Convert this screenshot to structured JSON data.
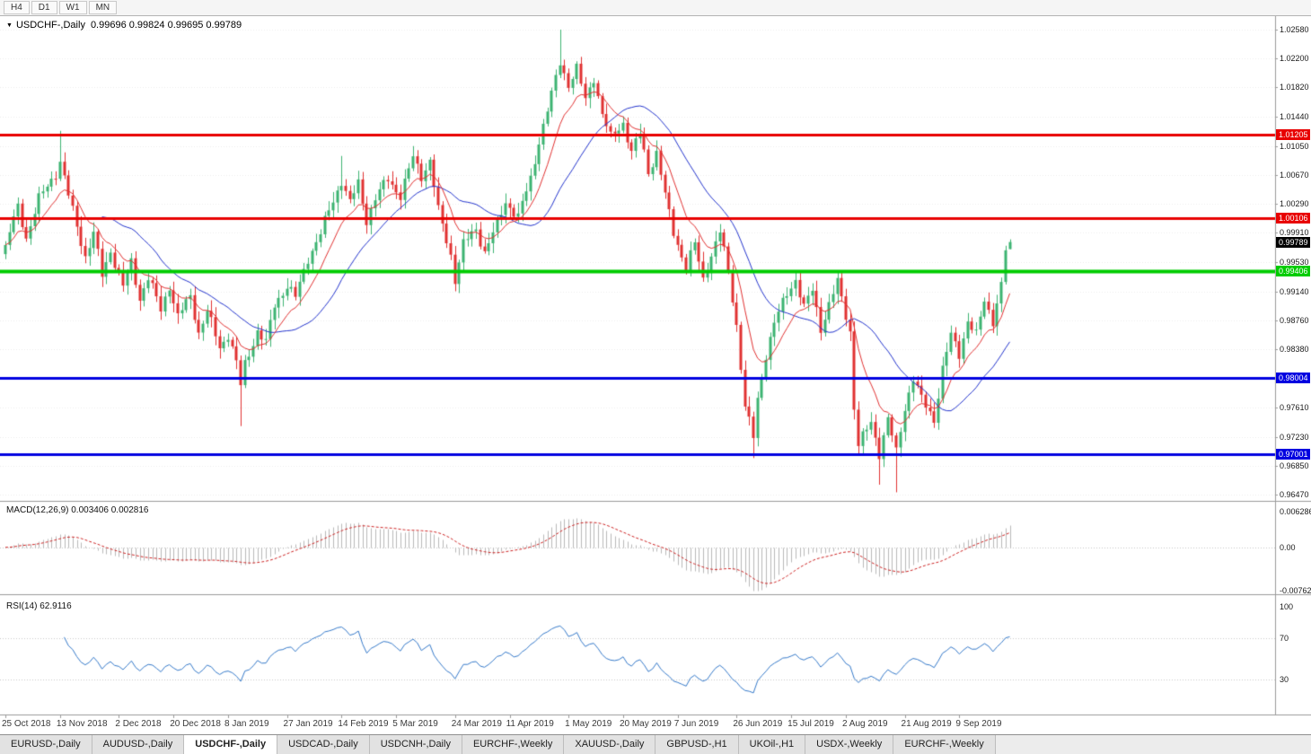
{
  "toolbar": {
    "timeframes": [
      "H4",
      "D1",
      "W1",
      "MN"
    ]
  },
  "chart": {
    "dropdown_icon": "triangle-down",
    "title_symbol": "USDCHF-,Daily",
    "ohlc_text": "0.99696 0.99824 0.99695 0.99789"
  },
  "price_axis": {
    "labels": [
      "1.02580",
      "1.02200",
      "1.01820",
      "1.01440",
      "1.01050",
      "1.00670",
      "1.00290",
      "0.99910",
      "0.99530",
      "0.99140",
      "0.98760",
      "0.98380",
      "0.97610",
      "0.97230",
      "0.96850",
      "0.96470"
    ]
  },
  "macd": {
    "label": "MACD(12,26,9) 0.003406 0.002816",
    "axis_labels": [
      "0.006286",
      "0.00",
      "-0.00762"
    ],
    "max": 0.006286,
    "min": -0.00762,
    "fast": 12,
    "slow": 26,
    "signal": 9
  },
  "rsi": {
    "label": "RSI(14) 62.9116",
    "axis_labels": [
      "100",
      "70",
      "30"
    ],
    "levels": [
      70,
      30
    ],
    "period": 14,
    "value": 62.9116
  },
  "date_axis": {
    "labels": [
      "25 Oct 2018",
      "13 Nov 2018",
      "2 Dec 2018",
      "20 Dec 2018",
      "8 Jan 2019",
      "27 Jan 2019",
      "14 Feb 2019",
      "5 Mar 2019",
      "24 Mar 2019",
      "11 Apr 2019",
      "1 May 2019",
      "20 May 2019",
      "7 Jun 2019",
      "26 Jun 2019",
      "15 Jul 2019",
      "2 Aug 2019",
      "21 Aug 2019",
      "9 Sep 2019"
    ]
  },
  "tabbar": {
    "tabs": [
      "EURUSD-,Daily",
      "AUDUSD-,Daily",
      "USDCHF-,Daily",
      "USDCAD-,Daily",
      "USDCNH-,Daily",
      "EURCHF-,Weekly",
      "XAUUSD-,Daily",
      "GBPUSD-,H1",
      "UKOil-,H1",
      "USDX-,Weekly",
      "EURCHF-,Weekly"
    ],
    "active_index": 2
  },
  "chart_data": {
    "type": "candlestick",
    "symbol": "USDCHF-",
    "timeframe": "Daily",
    "last_open": 0.99696,
    "last_high": 0.99824,
    "last_low": 0.99695,
    "last_close": 0.99789,
    "candle_count": 240,
    "axis": {
      "top_price": 1.0258,
      "bottom_price": 0.9647
    },
    "close_anchors": [
      [
        0,
        0.9975
      ],
      [
        3,
        1.0025
      ],
      [
        5,
        0.9985
      ],
      [
        8,
        1.0035
      ],
      [
        12,
        1.007
      ],
      [
        13,
        1.0085
      ],
      [
        15,
        1.004
      ],
      [
        17,
        1.0
      ],
      [
        19,
        0.996
      ],
      [
        21,
        0.999
      ],
      [
        23,
        0.9935
      ],
      [
        25,
        0.9968
      ],
      [
        28,
        0.992
      ],
      [
        30,
        0.9952
      ],
      [
        32,
        0.9905
      ],
      [
        34,
        0.9932
      ],
      [
        37,
        0.989
      ],
      [
        39,
        0.9922
      ],
      [
        41,
        0.988
      ],
      [
        44,
        0.9908
      ],
      [
        46,
        0.986
      ],
      [
        48,
        0.9888
      ],
      [
        51,
        0.984
      ],
      [
        53,
        0.9858
      ],
      [
        55,
        0.982
      ],
      [
        56,
        0.979
      ],
      [
        57,
        0.9818
      ],
      [
        60,
        0.9862
      ],
      [
        62,
        0.9846
      ],
      [
        64,
        0.9896
      ],
      [
        67,
        0.9922
      ],
      [
        69,
        0.9906
      ],
      [
        72,
        0.9958
      ],
      [
        75,
        0.999
      ],
      [
        77,
        1.002
      ],
      [
        80,
        1.006
      ],
      [
        82,
        1.003
      ],
      [
        84,
        1.0056
      ],
      [
        86,
        1.0008
      ],
      [
        88,
        1.0036
      ],
      [
        91,
        1.0062
      ],
      [
        94,
        1.004
      ],
      [
        97,
        1.009
      ],
      [
        99,
        1.0066
      ],
      [
        101,
        1.0086
      ],
      [
        103,
        1.002
      ],
      [
        106,
        0.9962
      ],
      [
        107,
        0.993
      ],
      [
        109,
        0.9976
      ],
      [
        112,
        0.9996
      ],
      [
        114,
        0.9966
      ],
      [
        117,
        1.0002
      ],
      [
        119,
        1.0032
      ],
      [
        122,
        1.0012
      ],
      [
        125,
        1.0062
      ],
      [
        127,
        1.0112
      ],
      [
        130,
        1.0172
      ],
      [
        132,
        1.0216
      ],
      [
        134,
        1.0186
      ],
      [
        136,
        1.0206
      ],
      [
        138,
        1.0166
      ],
      [
        140,
        1.0196
      ],
      [
        142,
        1.0146
      ],
      [
        144,
        1.0116
      ],
      [
        147,
        1.0136
      ],
      [
        149,
        1.0096
      ],
      [
        151,
        1.0122
      ],
      [
        153,
        1.0072
      ],
      [
        155,
        1.0096
      ],
      [
        157,
        1.004
      ],
      [
        159,
        0.9992
      ],
      [
        162,
        0.9946
      ],
      [
        164,
        0.9976
      ],
      [
        166,
        0.993
      ],
      [
        168,
        0.9962
      ],
      [
        170,
        0.9992
      ],
      [
        172,
        0.994
      ],
      [
        174,
        0.987
      ],
      [
        176,
        0.9762
      ],
      [
        178,
        0.9722
      ],
      [
        179,
        0.9772
      ],
      [
        181,
        0.9832
      ],
      [
        183,
        0.9872
      ],
      [
        186,
        0.9912
      ],
      [
        188,
        0.993
      ],
      [
        190,
        0.9892
      ],
      [
        192,
        0.9916
      ],
      [
        194,
        0.9866
      ],
      [
        196,
        0.9896
      ],
      [
        198,
        0.9926
      ],
      [
        201,
        0.9862
      ],
      [
        202,
        0.9762
      ],
      [
        203,
        0.9712
      ],
      [
        206,
        0.9742
      ],
      [
        208,
        0.9702
      ],
      [
        210,
        0.9746
      ],
      [
        212,
        0.9702
      ],
      [
        214,
        0.9762
      ],
      [
        216,
        0.98
      ],
      [
        218,
        0.9772
      ],
      [
        221,
        0.9746
      ],
      [
        223,
        0.9812
      ],
      [
        225,
        0.9856
      ],
      [
        227,
        0.9832
      ],
      [
        229,
        0.9876
      ],
      [
        231,
        0.9856
      ],
      [
        233,
        0.9902
      ],
      [
        235,
        0.9876
      ],
      [
        237,
        0.9922
      ],
      [
        238,
        0.9968
      ],
      [
        239,
        0.99789
      ]
    ],
    "extra_wicks": [
      {
        "i": 13,
        "high": 1.0125
      },
      {
        "i": 56,
        "low": 0.9737
      },
      {
        "i": 80,
        "high": 1.0092
      },
      {
        "i": 97,
        "high": 1.0105
      },
      {
        "i": 132,
        "high": 1.0258
      },
      {
        "i": 178,
        "low": 0.9695
      },
      {
        "i": 208,
        "low": 0.966
      },
      {
        "i": 212,
        "low": 0.965
      }
    ],
    "levels": [
      {
        "price": 1.01205,
        "label": "1.01205",
        "color": "#e80000",
        "width": 3
      },
      {
        "price": 1.00106,
        "label": "1.00106",
        "color": "#e80000",
        "width": 3
      },
      {
        "price": 0.99406,
        "label": "0.99406",
        "color": "#00cc00",
        "width": 4
      },
      {
        "price": 0.98004,
        "label": "0.98004",
        "color": "#0000e0",
        "width": 3
      },
      {
        "price": 0.97001,
        "label": "0.97001",
        "color": "#0000e0",
        "width": 3
      }
    ],
    "current_price_tag": {
      "label": "0.99789",
      "price": 0.99789,
      "bg": "#000000"
    },
    "moving_averages": [
      {
        "type": "sma",
        "period": 24,
        "color": "#2233cc"
      },
      {
        "type": "ema",
        "period": 10,
        "color": "#e03030"
      }
    ]
  },
  "colors": {
    "up": "#3cb371",
    "down": "#e03131",
    "grid": "#ececec",
    "separator": "#9a9a9a",
    "macd_hist": "#b8b8b8",
    "macd_signal": "#cc2222",
    "rsi_line": "#3579c9",
    "rsi_levels": "#c8c8c8"
  }
}
